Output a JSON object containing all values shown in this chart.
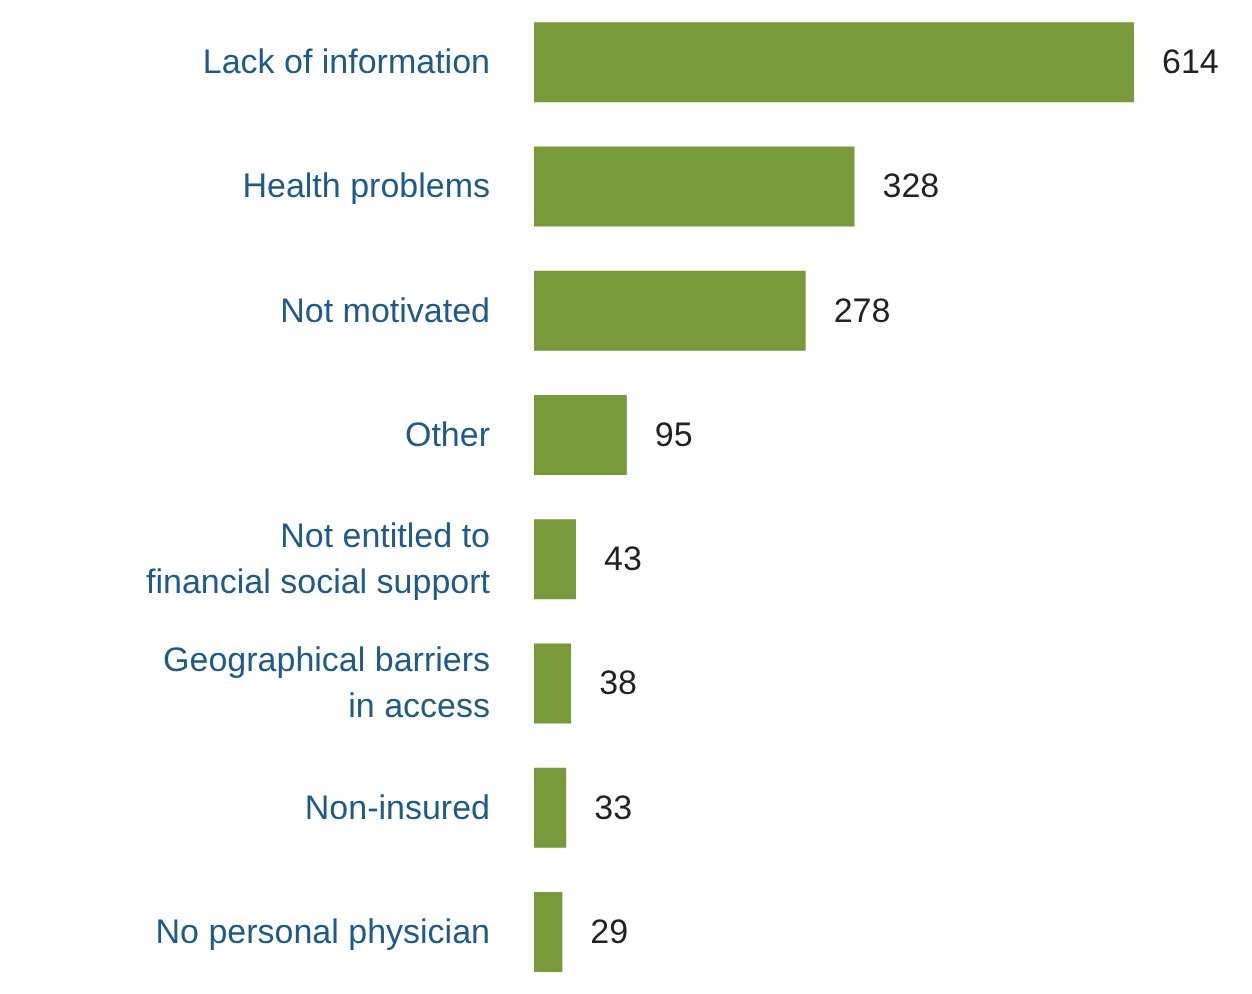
{
  "chart_data": {
    "type": "bar",
    "orientation": "horizontal",
    "data_labels": true,
    "categories": [
      "Lack of information",
      "Health problems",
      "Not motivated",
      "Other",
      "Not entitled to\nfinancial social support",
      "Geographical barriers\nin access",
      "Non-insured",
      "No personal physician"
    ],
    "values": [
      614,
      328,
      278,
      95,
      43,
      38,
      33,
      29
    ],
    "color": "#789a3a"
  }
}
